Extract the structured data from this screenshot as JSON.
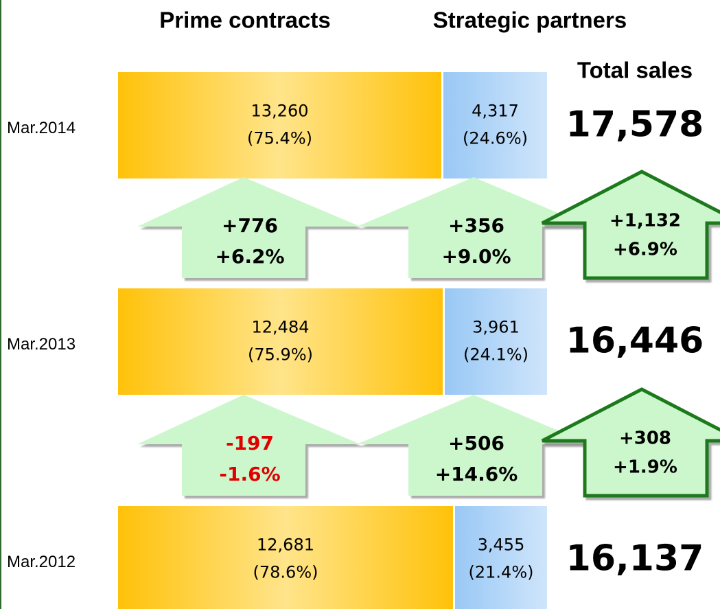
{
  "header": {
    "prime": "Prime contracts",
    "partners": "Strategic partners",
    "total": "Total sales"
  },
  "rows": [
    {
      "date": "Mar.2014",
      "prime": "13,260",
      "prime_share": "(75.4%)",
      "partners": "4,317",
      "partners_share": "(24.6%)",
      "total": "17,578"
    },
    {
      "date": "Mar.2013",
      "prime": "12,484",
      "prime_share": "(75.9%)",
      "partners": "3,961",
      "partners_share": "(24.1%)",
      "total": "16,446"
    },
    {
      "date": "Mar.2012",
      "prime": "12,681",
      "prime_share": "(78.6%)",
      "partners": "3,455",
      "partners_share": "(21.4%)",
      "total": "16,137"
    }
  ],
  "changes": [
    {
      "prime": [
        "+776",
        "+6.2%"
      ],
      "partners": [
        "+356",
        "+9.0%"
      ],
      "total": [
        "+1,132",
        "+6.9%"
      ]
    },
    {
      "prime": [
        "-197",
        "-1.6%"
      ],
      "partners": [
        "+506",
        "+14.6%"
      ],
      "total": [
        "+308",
        "+1.9%"
      ]
    }
  ]
}
